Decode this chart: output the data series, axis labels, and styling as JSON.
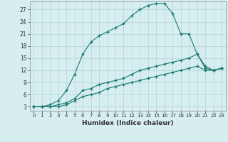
{
  "xlabel": "Humidex (Indice chaleur)",
  "bg_color": "#d6eef0",
  "grid_color": "#b8d8dc",
  "line_color": "#1a7a6e",
  "xlim": [
    -0.5,
    23.5
  ],
  "ylim": [
    2,
    29
  ],
  "xticks": [
    0,
    1,
    2,
    3,
    4,
    5,
    6,
    7,
    8,
    9,
    10,
    11,
    12,
    13,
    14,
    15,
    16,
    17,
    18,
    19,
    20,
    21,
    22,
    23
  ],
  "yticks": [
    3,
    6,
    9,
    12,
    15,
    18,
    21,
    24,
    27
  ],
  "series": [
    {
      "x": [
        0,
        1,
        2,
        3,
        4,
        5,
        6,
        7,
        8,
        9,
        10,
        11,
        12,
        13,
        14,
        15,
        16,
        17,
        18,
        19,
        20,
        21,
        22,
        23
      ],
      "y": [
        3,
        3,
        3.5,
        4.5,
        7,
        11,
        16,
        19,
        20.5,
        21.5,
        22.5,
        23.5,
        25.5,
        27,
        28,
        28.5,
        28.5,
        26,
        21,
        21,
        16,
        12.5,
        12,
        12.5
      ]
    },
    {
      "x": [
        0,
        1,
        2,
        3,
        4,
        5,
        6,
        7,
        8,
        9,
        10,
        11,
        12,
        13,
        14,
        15,
        16,
        17,
        18,
        19,
        20,
        21,
        22,
        23
      ],
      "y": [
        3,
        3,
        3,
        3.5,
        4,
        5,
        7,
        7.5,
        8.5,
        9,
        9.5,
        10,
        11,
        12,
        12.5,
        13,
        13.5,
        14,
        14.5,
        15,
        16,
        13,
        12,
        12.5
      ]
    },
    {
      "x": [
        0,
        1,
        2,
        3,
        4,
        5,
        6,
        7,
        8,
        9,
        10,
        11,
        12,
        13,
        14,
        15,
        16,
        17,
        18,
        19,
        20,
        21,
        22,
        23
      ],
      "y": [
        3,
        3,
        3,
        3,
        3.5,
        4.5,
        5.5,
        6,
        6.5,
        7.5,
        8,
        8.5,
        9,
        9.5,
        10,
        10.5,
        11,
        11.5,
        12,
        12.5,
        13,
        12,
        12,
        12.5
      ]
    }
  ]
}
